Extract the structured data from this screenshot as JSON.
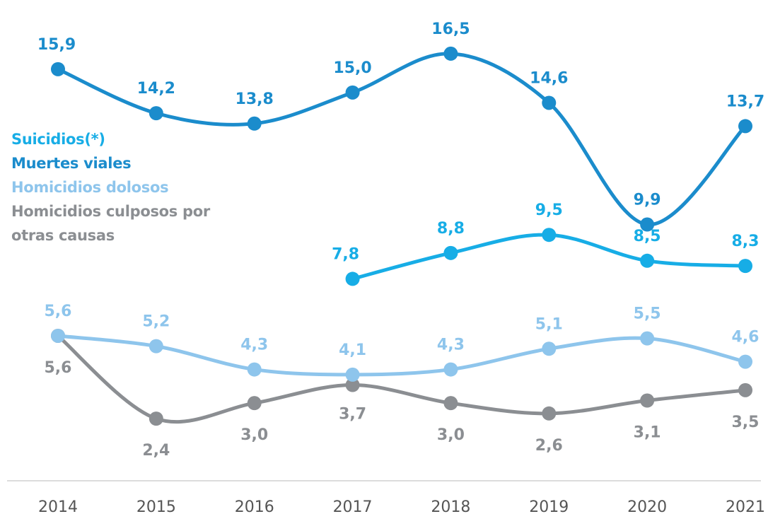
{
  "chart_data": {
    "type": "line",
    "categories": [
      "2014",
      "2015",
      "2016",
      "2017",
      "2018",
      "2019",
      "2020",
      "2021"
    ],
    "ylim": [
      0,
      18
    ],
    "series": [
      {
        "name": "Suicidios(*)",
        "color": "#17ade6",
        "values": [
          null,
          null,
          null,
          7.8,
          8.8,
          9.5,
          8.5,
          8.3
        ],
        "value_labels": [
          null,
          null,
          null,
          "7,8",
          "8,8",
          "9,5",
          "8,5",
          "8,3"
        ]
      },
      {
        "name": "Muertes viales",
        "color": "#1b8ccc",
        "values": [
          15.9,
          14.2,
          13.8,
          15.0,
          16.5,
          14.6,
          9.9,
          13.7
        ],
        "value_labels": [
          "15,9",
          "14,2",
          "13,8",
          "15,0",
          "16,5",
          "14,6",
          "9,9",
          "13,7"
        ]
      },
      {
        "name": "Homicidios dolosos",
        "color": "#8ec5ec",
        "values": [
          5.6,
          5.2,
          4.3,
          4.1,
          4.3,
          5.1,
          5.5,
          4.6
        ],
        "value_labels": [
          "5,6",
          "5,2",
          "4,3",
          "4,1",
          "4,3",
          "5,1",
          "5,5",
          "4,6"
        ]
      },
      {
        "name": "Homicidios culposos por otras causas",
        "color": "#8b8e92",
        "values": [
          5.6,
          2.4,
          3.0,
          3.7,
          3.0,
          2.6,
          3.1,
          3.5
        ],
        "value_labels": [
          "5,6",
          "2,4",
          "3,0",
          "3,7",
          "3,0",
          "2,6",
          "3,1",
          "3,5"
        ]
      }
    ]
  }
}
